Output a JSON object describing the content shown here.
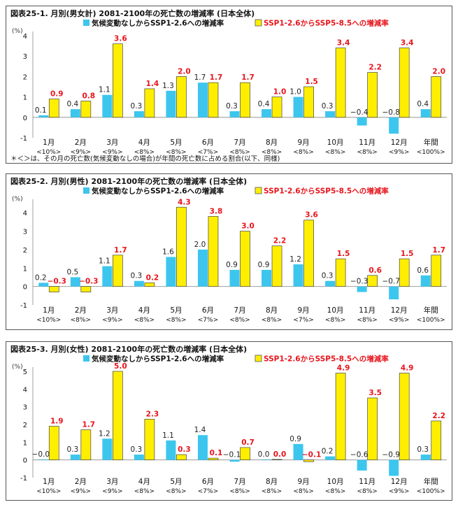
{
  "colors": {
    "climate_change": "#3cc6ee",
    "ssp": "#ffee00",
    "label_red": "#e8141c",
    "label_black": "#222222"
  },
  "shared": {
    "months": [
      "1月",
      "2月",
      "3月",
      "4月",
      "5月",
      "6月",
      "7月",
      "8月",
      "9月",
      "10月",
      "11月",
      "12月",
      "年間"
    ],
    "unit": "(%)",
    "legend_a": "気候変動なしからSSP1-2.6への増減率",
    "legend_b": "SSP1-2.6からSSP5-8.5への増減率"
  },
  "chart_data": [
    {
      "type": "bar",
      "title": "図表25-1. 月別(男女計) 2081-2100年の死亡数の増減率 (日本全体)",
      "ylabel": "(%)",
      "ylim": [
        -1,
        4
      ],
      "yticks": [
        -1,
        0,
        1,
        2,
        3,
        4
      ],
      "categories": [
        "1月",
        "2月",
        "3月",
        "4月",
        "5月",
        "6月",
        "7月",
        "8月",
        "9月",
        "10月",
        "11月",
        "12月",
        "年間"
      ],
      "shares": [
        "<10%>",
        "<9%>",
        "<9%>",
        "<8%>",
        "<8%>",
        "<7%>",
        "<8%>",
        "<8%>",
        "<8%>",
        "<8%>",
        "<8%>",
        "<9%>",
        "<100%>"
      ],
      "series": [
        {
          "name": "気候変動なしからSSP1-2.6への増減率",
          "values": [
            0.1,
            0.4,
            1.1,
            0.3,
            1.3,
            1.7,
            0.3,
            0.4,
            1.0,
            0.3,
            -0.4,
            -0.8,
            0.4
          ]
        },
        {
          "name": "SSP1-2.6からSSP5-8.5への増減率",
          "values": [
            0.9,
            0.8,
            3.6,
            1.4,
            2.0,
            1.7,
            1.7,
            1.0,
            1.5,
            3.4,
            2.2,
            3.4,
            2.0
          ]
        }
      ],
      "labels_a": [
        "0.1",
        "0.4",
        "1.1",
        "0.3",
        "1.3",
        "1.7",
        "0.3",
        "0.4",
        "1.0",
        "0.3",
        "−0.4",
        "−0.8",
        "0.4"
      ],
      "labels_b": [
        "0.9",
        "0.8",
        "3.6",
        "1.4",
        "2.0",
        "1.7",
        "1.7",
        "1.0",
        "1.5",
        "3.4",
        "2.2",
        "3.4",
        "2.0"
      ],
      "note": "＊＜＞は、その月の死亡数(気候変動なしの場合)が年間の死亡数に占める割合(以下、同様)",
      "legend_position": "top"
    },
    {
      "type": "bar",
      "title": "図表25-2. 月別(男性) 2081-2100年の死亡数の増減率 (日本全体)",
      "ylabel": "(%)",
      "ylim": [
        -1,
        4.5
      ],
      "yticks": [
        -1,
        0,
        1,
        2,
        3,
        4
      ],
      "categories": [
        "1月",
        "2月",
        "3月",
        "4月",
        "5月",
        "6月",
        "7月",
        "8月",
        "9月",
        "10月",
        "11月",
        "12月",
        "年間"
      ],
      "shares": [
        "<10%>",
        "<8%>",
        "<9%>",
        "<8%>",
        "<8%>",
        "<7%>",
        "<8%>",
        "<8%>",
        "<7%>",
        "<8%>",
        "<8%>",
        "<9%>",
        "<100%>"
      ],
      "series": [
        {
          "name": "気候変動なしからSSP1-2.6への増減率",
          "values": [
            0.2,
            0.5,
            1.1,
            0.3,
            1.6,
            2.0,
            0.9,
            0.9,
            1.2,
            0.3,
            -0.3,
            -0.7,
            0.6
          ]
        },
        {
          "name": "SSP1-2.6からSSP5-8.5への増減率",
          "values": [
            -0.3,
            -0.3,
            1.7,
            0.2,
            4.3,
            3.8,
            3.0,
            2.2,
            3.6,
            1.5,
            0.6,
            1.5,
            1.7
          ]
        }
      ],
      "labels_a": [
        "0.2",
        "0.5",
        "1.1",
        "0.3",
        "1.6",
        "2.0",
        "0.9",
        "0.9",
        "1.2",
        "0.3",
        "−0.3",
        "−0.7",
        "0.6"
      ],
      "labels_b": [
        "−0.3",
        "−0.3",
        "1.7",
        "0.2",
        "4.3",
        "3.8",
        "3.0",
        "2.2",
        "3.6",
        "1.5",
        "0.6",
        "1.5",
        "1.7"
      ],
      "note": "",
      "legend_position": "top"
    },
    {
      "type": "bar",
      "title": "図表25-3. 月別(女性) 2081-2100年の死亡数の増減率 (日本全体)",
      "ylabel": "(%)",
      "ylim": [
        -1,
        5
      ],
      "yticks": [
        -1,
        0,
        1,
        2,
        3,
        4,
        5
      ],
      "categories": [
        "1月",
        "2月",
        "3月",
        "4月",
        "5月",
        "6月",
        "7月",
        "8月",
        "9月",
        "10月",
        "11月",
        "12月",
        "年間"
      ],
      "shares": [
        "<10%>",
        "<9%>",
        "<9%>",
        "<8%>",
        "<8%>",
        "<7%>",
        "<8%>",
        "<8%>",
        "<8%>",
        "<8%>",
        "<8%>",
        "<9%>",
        "<100%>"
      ],
      "series": [
        {
          "name": "気候変動なしからSSP1-2.6への増減率",
          "values": [
            -0.0,
            0.3,
            1.2,
            0.3,
            1.1,
            1.4,
            -0.1,
            0.0,
            0.9,
            0.2,
            -0.6,
            -0.9,
            0.3
          ]
        },
        {
          "name": "SSP1-2.6からSSP5-8.5への増減率",
          "values": [
            1.9,
            1.7,
            5.0,
            2.3,
            0.3,
            0.1,
            0.7,
            0.0,
            -0.1,
            4.9,
            3.5,
            4.9,
            2.2
          ]
        }
      ],
      "labels_a": [
        "−0.0",
        "0.3",
        "1.2",
        "0.3",
        "1.1",
        "1.4",
        "−0.1",
        "0.0",
        "0.9",
        "0.2",
        "−0.6",
        "−0.9",
        "0.3"
      ],
      "labels_b": [
        "1.9",
        "1.7",
        "5.0",
        "2.3",
        "0.3",
        "0.1",
        "0.7",
        "0.0",
        "−0.1",
        "4.9",
        "3.5",
        "4.9",
        "2.2"
      ],
      "note": "",
      "legend_position": "top"
    }
  ]
}
